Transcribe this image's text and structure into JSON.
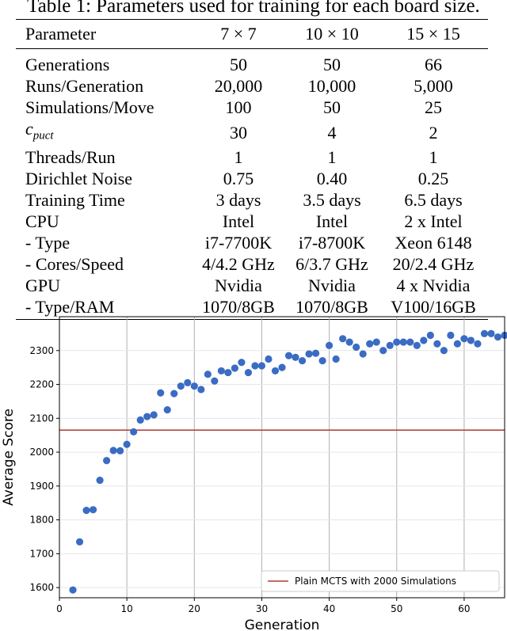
{
  "caption": "Table 1: Parameters used for training for each board size.",
  "table": {
    "headers": [
      "Parameter",
      "7 × 7",
      "10 × 10",
      "15 × 15"
    ],
    "rows": [
      [
        "Generations",
        "50",
        "50",
        "66"
      ],
      [
        "Runs/Generation",
        "20,000",
        "10,000",
        "5,000"
      ],
      [
        "Simulations/Move",
        "100",
        "50",
        "25"
      ],
      [
        "c_puct",
        "30",
        "4",
        "2"
      ],
      [
        "Threads/Run",
        "1",
        "1",
        "1"
      ],
      [
        "Dirichlet Noise",
        "0.75",
        "0.40",
        "0.25"
      ],
      [
        "Training Time",
        "3 days",
        "3.5 days",
        "6.5 days"
      ],
      [
        "CPU",
        "Intel",
        "Intel",
        "2 x Intel"
      ],
      [
        "- Type",
        "i7-7700K",
        "i7-8700K",
        "Xeon 6148"
      ],
      [
        "- Cores/Speed",
        "4/4.2 GHz",
        "6/3.7 GHz",
        "20/2.4 GHz"
      ],
      [
        "GPU",
        "Nvidia",
        "Nvidia",
        "4 x Nvidia"
      ],
      [
        "- Type/RAM",
        "1070/8GB",
        "1070/8GB",
        "V100/16GB"
      ]
    ],
    "cpuct_symbol": "c",
    "cpuct_subscript": "puct"
  },
  "chart_data": {
    "type": "scatter",
    "xlabel": "Generation",
    "ylabel": "Average Score",
    "xlim": [
      0,
      66
    ],
    "ylim": [
      1570,
      2400
    ],
    "xticks": [
      0,
      10,
      20,
      30,
      40,
      50,
      60
    ],
    "yticks": [
      1600,
      1700,
      1800,
      1900,
      2000,
      2100,
      2200,
      2300
    ],
    "grid": true,
    "legend_position": "bottom-right",
    "reference_line": {
      "label": "Plain MCTS with 2000 Simulations",
      "y": 2065,
      "color": "#b03a2e"
    },
    "marker_color": "#3b6cc4",
    "series": [
      {
        "x": [
          2,
          3,
          4,
          5,
          6,
          7,
          8,
          9,
          10,
          11,
          12,
          13,
          14,
          15,
          16,
          17,
          18,
          19,
          20,
          21,
          22,
          23,
          24,
          25,
          26,
          27,
          28,
          29,
          30,
          31,
          32,
          33,
          34,
          35,
          36,
          37,
          38,
          39,
          40,
          41,
          42,
          43,
          44,
          45,
          46,
          47,
          48,
          49,
          50,
          51,
          52,
          53,
          54,
          55,
          56,
          57,
          58,
          59,
          60,
          61,
          62,
          63,
          64,
          65,
          66
        ],
        "y": [
          1593,
          1735,
          1828,
          1830,
          1917,
          1975,
          2005,
          2004,
          2023,
          2060,
          2095,
          2105,
          2110,
          2175,
          2125,
          2173,
          2195,
          2205,
          2195,
          2185,
          2230,
          2210,
          2240,
          2235,
          2248,
          2265,
          2235,
          2255,
          2255,
          2275,
          2240,
          2250,
          2285,
          2280,
          2270,
          2290,
          2292,
          2270,
          2315,
          2275,
          2335,
          2325,
          2310,
          2290,
          2320,
          2325,
          2300,
          2315,
          2325,
          2325,
          2325,
          2315,
          2330,
          2345,
          2320,
          2300,
          2345,
          2320,
          2335,
          2330,
          2320,
          2350,
          2350,
          2340,
          2345
        ]
      }
    ]
  }
}
